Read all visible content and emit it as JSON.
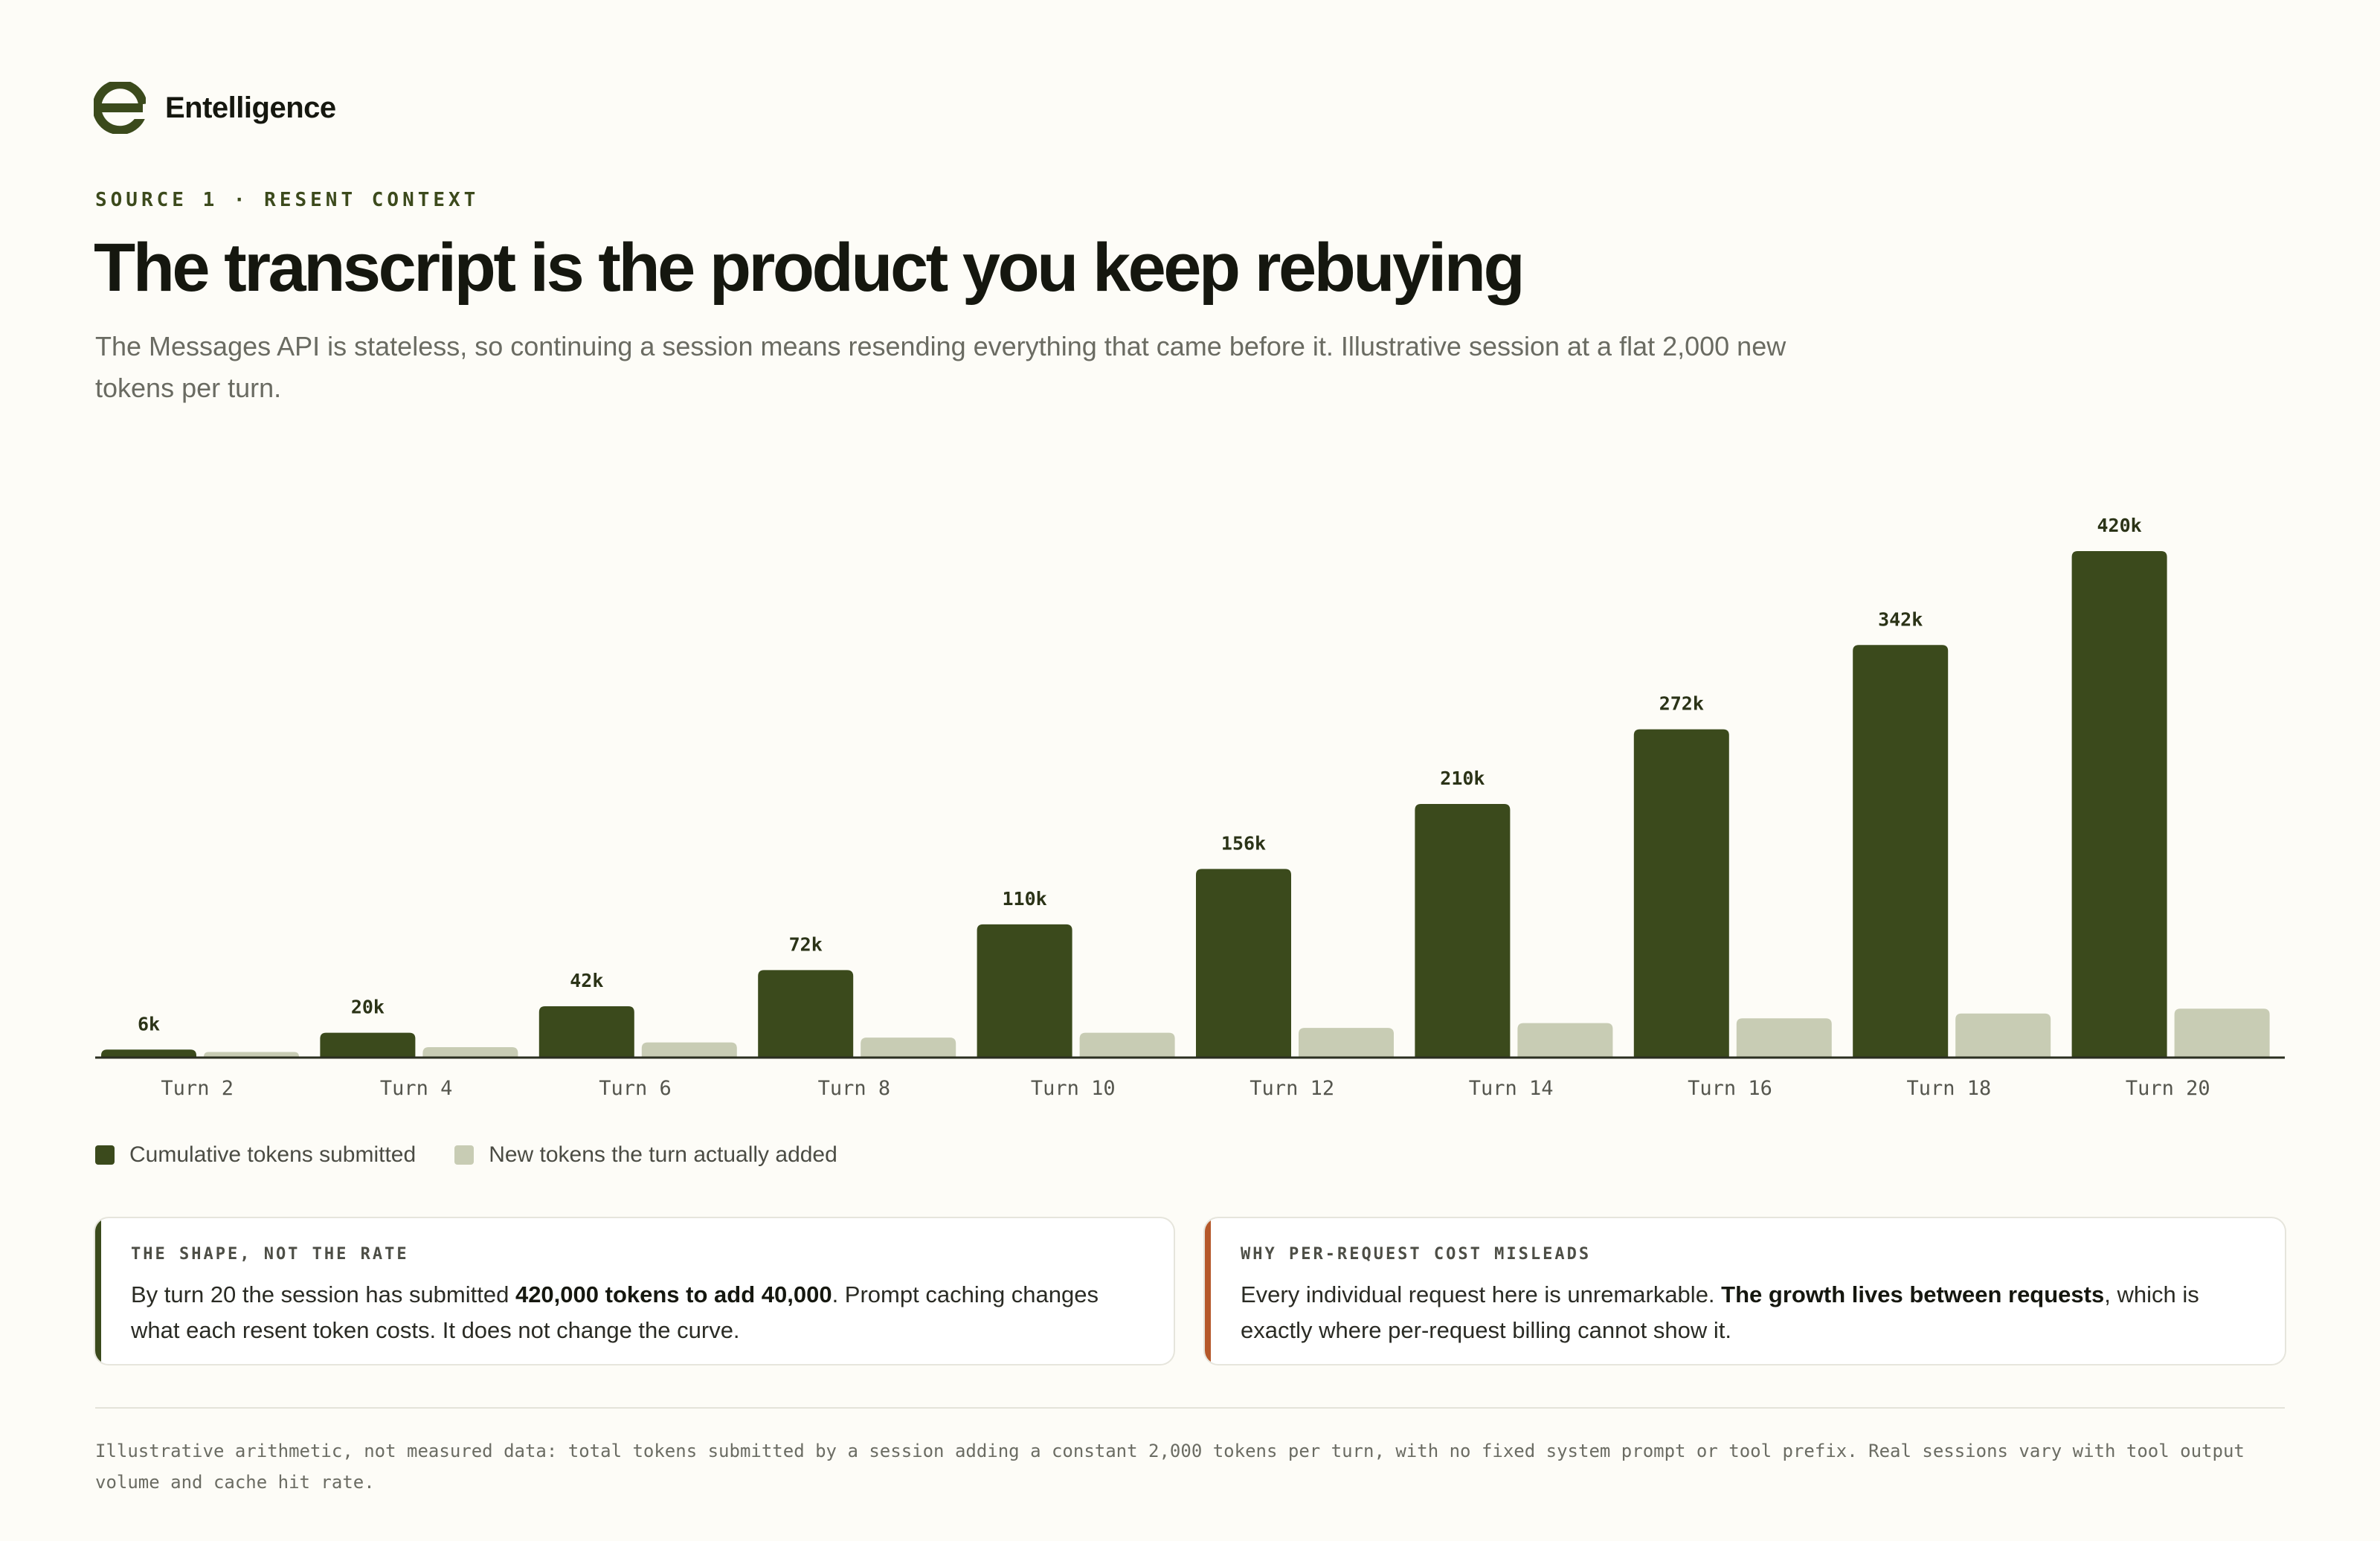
{
  "brand": {
    "name": "Entelligence",
    "logo": "entelligence-e-logo"
  },
  "eyebrow": "SOURCE 1 · RESENT CONTEXT",
  "title": "The transcript is the product you keep rebuying",
  "subtitle": "The Messages API is stateless, so continuing a session means resending everything that came before it. Illustrative session at a flat 2,000 new tokens per turn.",
  "colors": {
    "dark": "#3b4a1c",
    "light": "#c8ccb4",
    "accent_orange": "#b5582a",
    "background": "#fdfcf7"
  },
  "chart_data": {
    "type": "bar",
    "categories": [
      "Turn 2",
      "Turn 4",
      "Turn 6",
      "Turn 8",
      "Turn 10",
      "Turn 12",
      "Turn 14",
      "Turn 16",
      "Turn 18",
      "Turn 20"
    ],
    "series": [
      {
        "name": "Cumulative tokens submitted",
        "values": [
          6000,
          20000,
          42000,
          72000,
          110000,
          156000,
          210000,
          272000,
          342000,
          420000
        ],
        "labels": [
          "6k",
          "20k",
          "42k",
          "72k",
          "110k",
          "156k",
          "210k",
          "272k",
          "342k",
          "420k"
        ]
      },
      {
        "name": "New tokens the turn actually added",
        "values": [
          4000,
          8000,
          12000,
          16000,
          20000,
          24000,
          28000,
          32000,
          36000,
          40000
        ]
      }
    ],
    "ylim": [
      0,
      420000
    ],
    "grid": false,
    "legend": "bottom-left"
  },
  "cards": [
    {
      "label": "THE SHAPE, NOT THE RATE",
      "pre": "By turn 20 the session has submitted ",
      "bold": "420,000 tokens to add 40,000",
      "post": ". Prompt caching changes what each resent token costs. It does not change the curve."
    },
    {
      "label": "WHY PER-REQUEST COST MISLEADS",
      "pre": "Every individual request here is unremarkable. ",
      "bold": "The growth lives between requests",
      "post": ", which is exactly where per-request billing cannot show it."
    }
  ],
  "footnote": "Illustrative arithmetic, not measured data: total tokens submitted by a session adding a constant 2,000 tokens per turn, with no fixed system prompt or tool prefix. Real sessions vary with tool output volume and cache hit rate."
}
